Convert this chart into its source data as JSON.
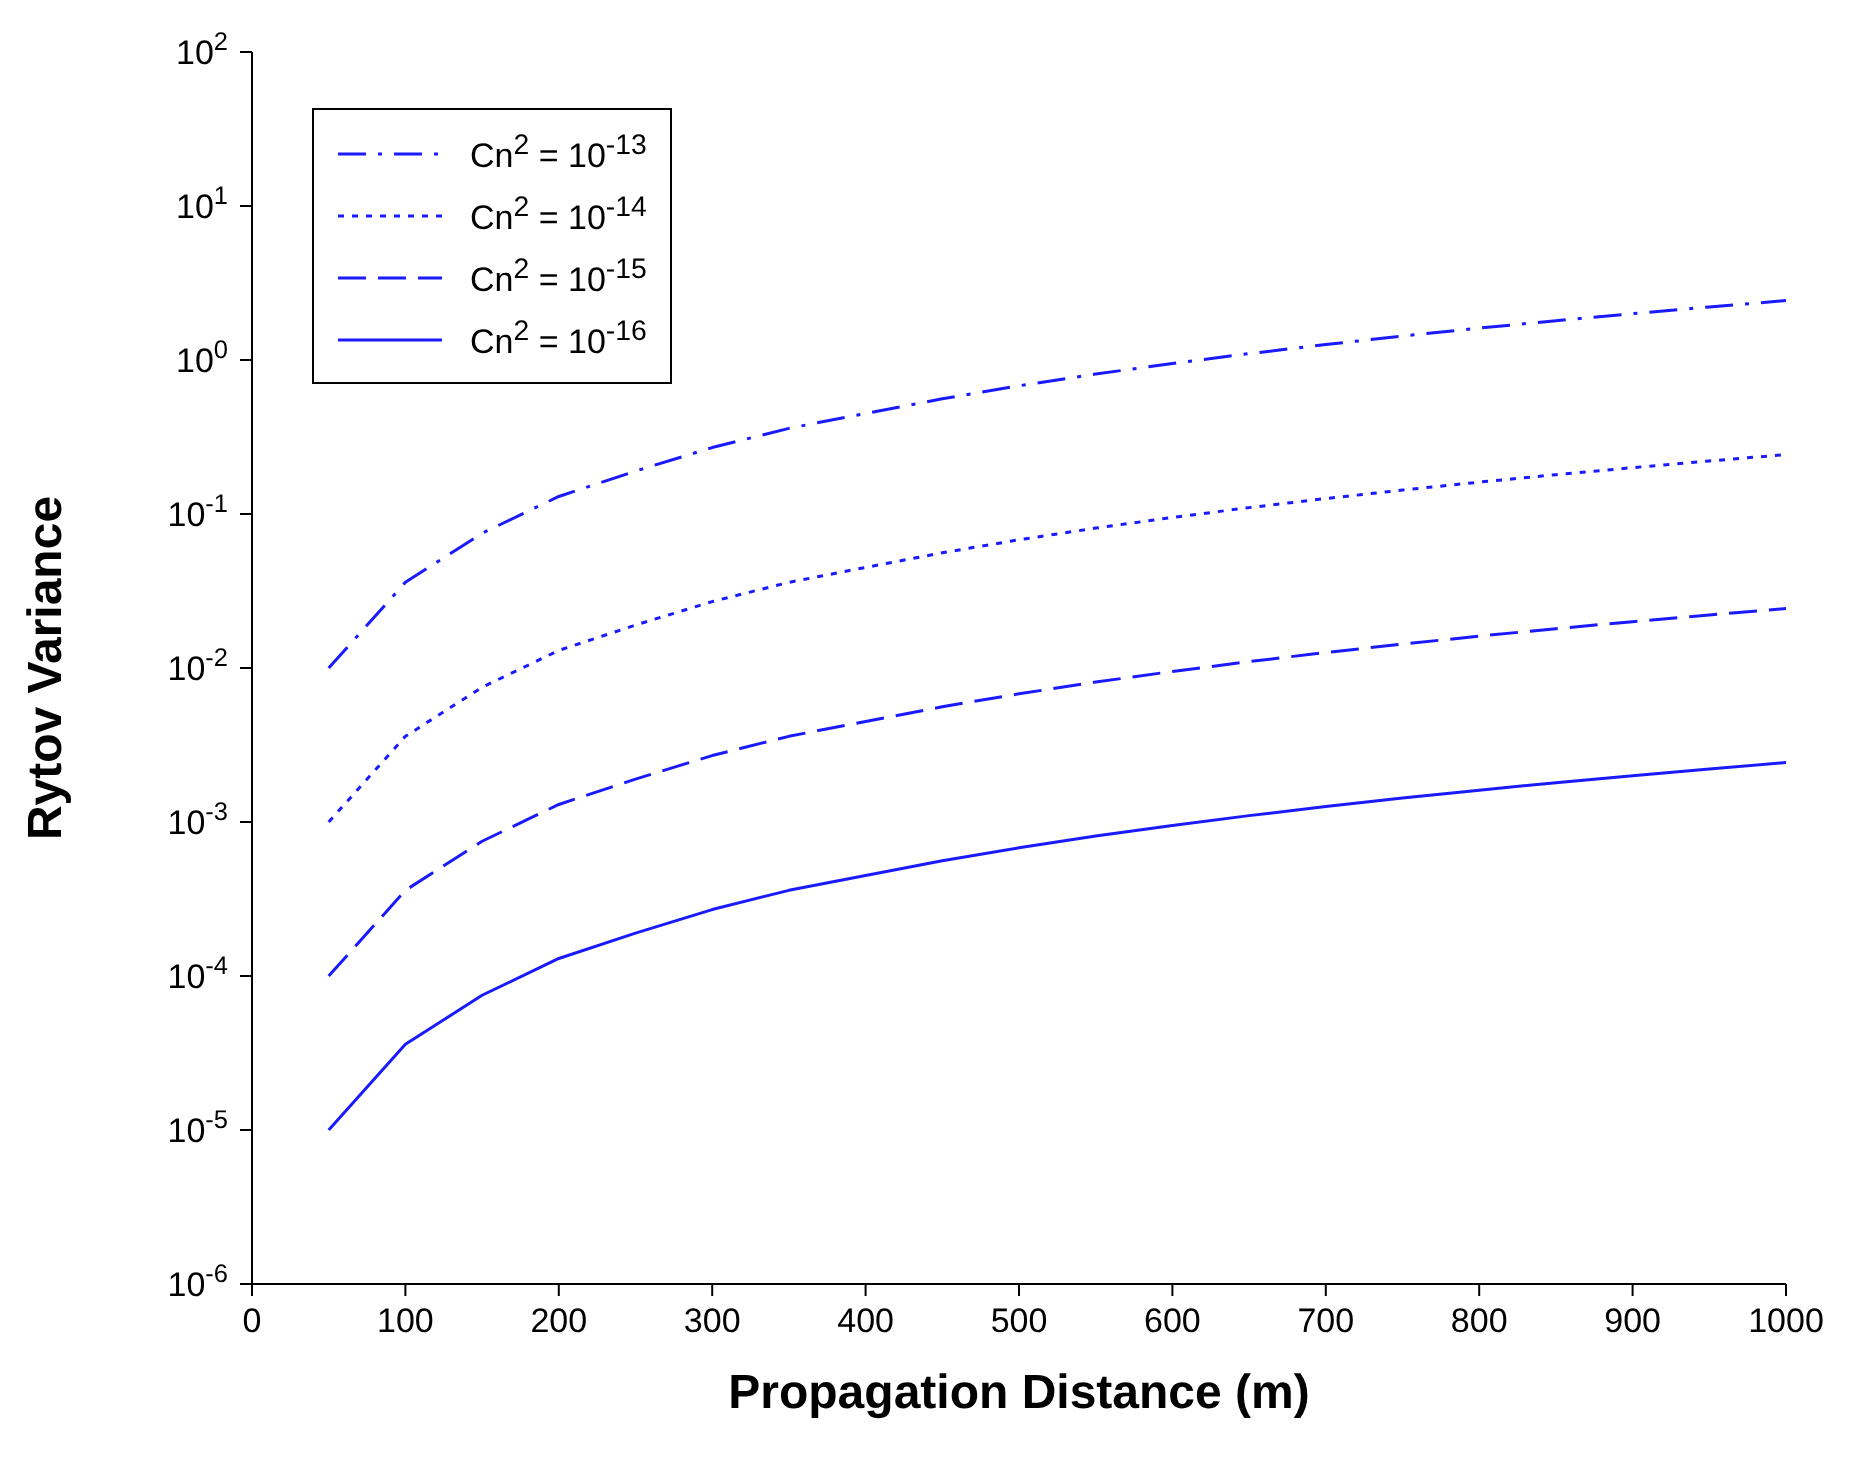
{
  "chart_data": {
    "type": "line",
    "xlabel": "Propagation Distance (m)",
    "ylabel": "Rytov Variance",
    "log": "y",
    "legend": "top left",
    "marker": "none",
    "x": [
      50,
      100,
      150,
      200,
      250,
      300,
      350,
      400,
      450,
      500,
      550,
      600,
      650,
      700,
      750,
      800,
      850,
      900,
      950,
      1000
    ],
    "xlim": [
      0,
      1000
    ],
    "xticks": [
      0,
      100,
      200,
      300,
      400,
      500,
      600,
      700,
      800,
      900,
      1000
    ],
    "ylim": [
      1e-06,
      100
    ],
    "yticks": [
      {
        "value": 1e-06,
        "label": "10$^{-6}$"
      },
      {
        "value": 1e-05,
        "label": "10$^{-5}$"
      },
      {
        "value": 0.0001,
        "label": "10$^{-4}$"
      },
      {
        "value": 0.001,
        "label": "10$^{-3}$"
      },
      {
        "value": 0.01,
        "label": "10$^{-2}$"
      },
      {
        "value": 0.1,
        "label": "10$^{-1}$"
      },
      {
        "value": 1,
        "label": "10$^{0}$"
      },
      {
        "value": 10,
        "label": "10$^{1}$"
      },
      {
        "value": 100,
        "label": "10$^{2}$"
      }
    ],
    "series": [
      {
        "name": "Cn$^{2}$ = 10$^{-13}$",
        "color": "#1a1aff",
        "line_style": "dashdot",
        "values": [
          0.01,
          0.036,
          0.075,
          0.13,
          0.19,
          0.27,
          0.36,
          0.45,
          0.56,
          0.68,
          0.81,
          0.95,
          1.1,
          1.26,
          1.43,
          1.61,
          1.8,
          2.0,
          2.21,
          2.43
        ]
      },
      {
        "name": "Cn$^{2}$ = 10$^{-14}$",
        "color": "#1a1aff",
        "line_style": "dotted",
        "values": [
          0.001,
          0.0036,
          0.0075,
          0.013,
          0.019,
          0.027,
          0.036,
          0.045,
          0.056,
          0.068,
          0.081,
          0.095,
          0.11,
          0.126,
          0.143,
          0.161,
          0.18,
          0.2,
          0.221,
          0.243
        ]
      },
      {
        "name": "Cn$^{2}$ = 10$^{-15}$",
        "color": "#1a1aff",
        "line_style": "dashed",
        "values": [
          0.0001,
          0.00036,
          0.00075,
          0.0013,
          0.0019,
          0.0027,
          0.0036,
          0.0045,
          0.0056,
          0.0068,
          0.0081,
          0.0095,
          0.011,
          0.0126,
          0.0143,
          0.0161,
          0.018,
          0.02,
          0.0221,
          0.0243
        ]
      },
      {
        "name": "Cn$^{2}$ = 10$^{-16}$",
        "color": "#1a1aff",
        "line_style": "solid",
        "values": [
          1e-05,
          3.6e-05,
          7.5e-05,
          0.00013,
          0.00019,
          0.00027,
          0.00036,
          0.00045,
          0.00056,
          0.00068,
          0.00081,
          0.00095,
          0.0011,
          0.00126,
          0.00143,
          0.00161,
          0.0018,
          0.002,
          0.00221,
          0.00243
        ]
      }
    ]
  }
}
